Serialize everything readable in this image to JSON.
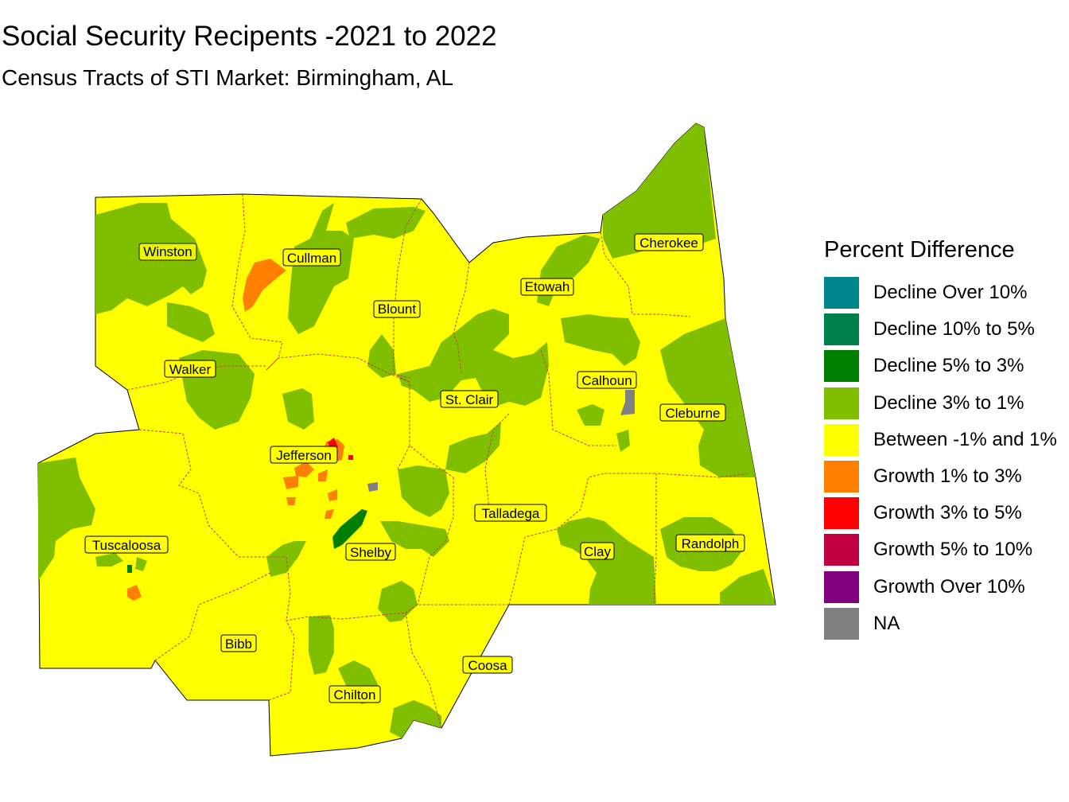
{
  "title": "Social Security Recipents -2021 to 2022",
  "subtitle": "Census Tracts of STI Market: Birmingham, AL",
  "colors": {
    "base": "#FFFF00",
    "decline_3_1": "#80BF00",
    "decline_5_3": "#008000",
    "growth_1_3": "#FF8000",
    "growth_3_5": "#FF0000",
    "na": "#808080",
    "county_border": "#C04040"
  },
  "legend": {
    "title": "Percent Difference",
    "items": [
      {
        "label": "Decline Over 10%",
        "color": "#00868B"
      },
      {
        "label": "Decline 10% to 5%",
        "color": "#00804A"
      },
      {
        "label": "Decline 5% to 3%",
        "color": "#008000"
      },
      {
        "label": "Decline 3% to 1%",
        "color": "#80BF00"
      },
      {
        "label": "Between -1% and 1%",
        "color": "#FFFF00"
      },
      {
        "label": "Growth 1% to 3%",
        "color": "#FF8000"
      },
      {
        "label": "Growth 3% to 5%",
        "color": "#FF0000"
      },
      {
        "label": "Growth 5% to 10%",
        "color": "#C00040"
      },
      {
        "label": "Growth Over 10%",
        "color": "#800080"
      },
      {
        "label": "NA",
        "color": "#808080"
      }
    ]
  },
  "counties": [
    "Winston",
    "Cullman",
    "Blount",
    "Etowah",
    "Cherokee",
    "Walker",
    "Calhoun",
    "St. Clair",
    "Cleburne",
    "Jefferson",
    "Talladega",
    "Tuscaloosa",
    "Shelby",
    "Clay",
    "Randolph",
    "Bibb",
    "Coosa",
    "Chilton"
  ]
}
